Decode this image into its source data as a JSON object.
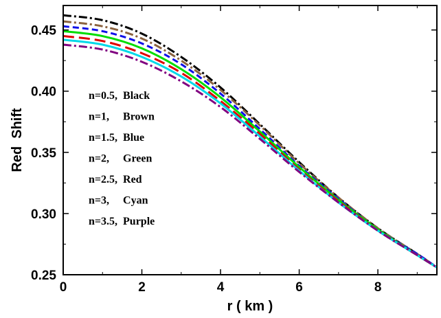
{
  "chart_data": {
    "type": "line",
    "xlabel": "r ( km )",
    "ylabel": "Red  Shift",
    "xlim": [
      0,
      9.5
    ],
    "ylim": [
      0.25,
      0.47
    ],
    "xticks": [
      0,
      2,
      4,
      6,
      8
    ],
    "xtick_labels": [
      "0",
      "2",
      "4",
      "6",
      "8"
    ],
    "yticks": [
      0.25,
      0.3,
      0.35,
      0.4,
      0.45
    ],
    "ytick_labels": [
      "0.25",
      "0.30",
      "0.35",
      "0.40",
      "0.45"
    ],
    "grid": false,
    "legend": "none",
    "annotations": [
      {
        "text": "n=0.5,  Black"
      },
      {
        "text": "n=1,     Brown"
      },
      {
        "text": "n=1.5,  Blue"
      },
      {
        "text": "n=2,     Green"
      },
      {
        "text": "n=2.5,  Red"
      },
      {
        "text": "n=3,     Cyan"
      },
      {
        "text": "n=3.5,  Purple"
      }
    ],
    "x": [
      0,
      1,
      2,
      3,
      4,
      5,
      6,
      7,
      8,
      9,
      9.5
    ],
    "series": [
      {
        "color": "#000000",
        "dash": "dashdot",
        "values": [
          0.462,
          0.458,
          0.447,
          0.428,
          0.403,
          0.373,
          0.342,
          0.313,
          0.288,
          0.267,
          0.256
        ]
      },
      {
        "color": "#8B6340",
        "dash": "dashdot",
        "values": [
          0.457,
          0.453,
          0.443,
          0.425,
          0.401,
          0.372,
          0.341,
          0.313,
          0.288,
          0.267,
          0.256
        ]
      },
      {
        "color": "#1010e8",
        "dash": "dashed",
        "values": [
          0.453,
          0.449,
          0.439,
          0.422,
          0.398,
          0.369,
          0.339,
          0.312,
          0.287,
          0.267,
          0.256
        ]
      },
      {
        "color": "#00dd00",
        "dash": "solid",
        "values": [
          0.449,
          0.445,
          0.435,
          0.418,
          0.395,
          0.367,
          0.338,
          0.311,
          0.287,
          0.266,
          0.256
        ]
      },
      {
        "color": "#e00000",
        "dash": "longdash",
        "values": [
          0.445,
          0.441,
          0.431,
          0.415,
          0.392,
          0.365,
          0.336,
          0.31,
          0.286,
          0.266,
          0.256
        ]
      },
      {
        "color": "#00d8e8",
        "dash": "solid",
        "values": [
          0.442,
          0.438,
          0.428,
          0.412,
          0.39,
          0.363,
          0.335,
          0.309,
          0.286,
          0.266,
          0.256
        ]
      },
      {
        "color": "#800080",
        "dash": "dashdot",
        "values": [
          0.438,
          0.434,
          0.424,
          0.408,
          0.387,
          0.361,
          0.334,
          0.309,
          0.286,
          0.266,
          0.256
        ]
      }
    ]
  }
}
